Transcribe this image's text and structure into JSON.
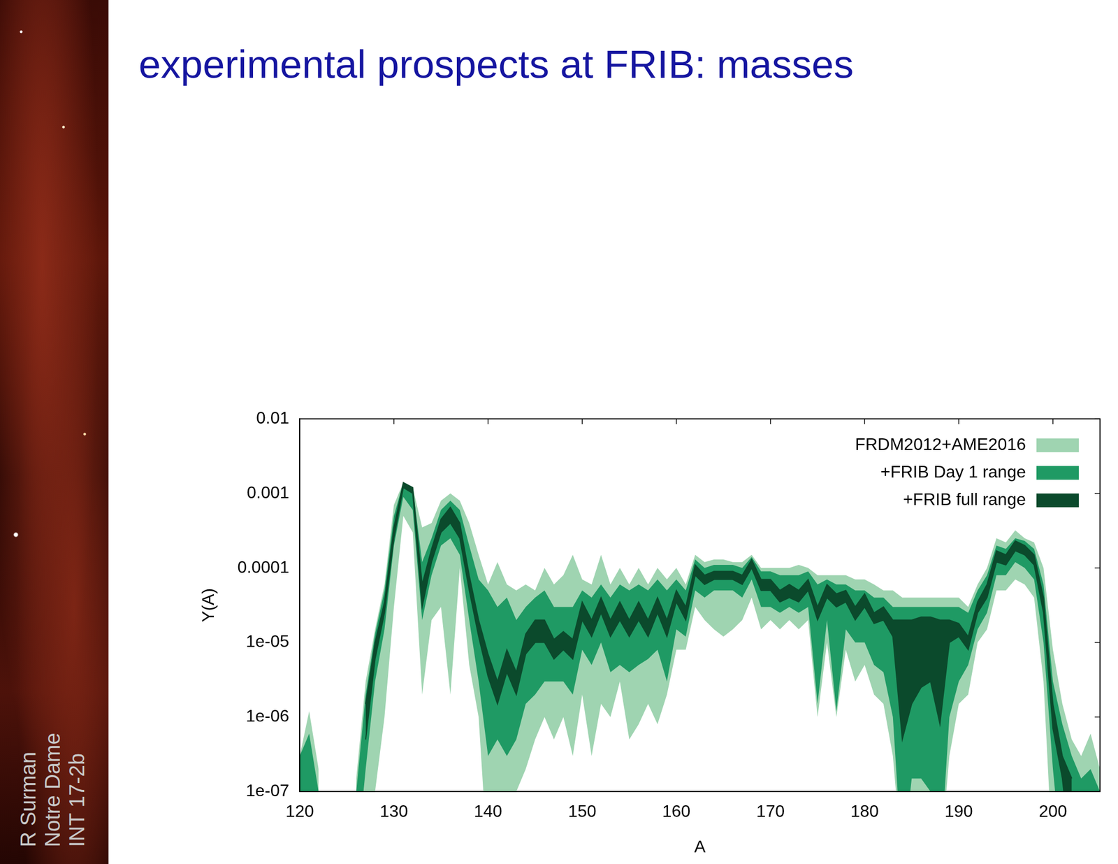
{
  "chart_data": {
    "type": "line",
    "title": "experimental prospects at FRIB: masses",
    "annotations": [
      "R Surman",
      "Notre Dame",
      "INT 17-2b"
    ],
    "xlabel": "A",
    "ylabel": "Y(A)",
    "log": "y",
    "legend": "upper right",
    "grid": false,
    "xlim": [
      120,
      205
    ],
    "xticks": [
      120,
      130,
      140,
      150,
      160,
      170,
      180,
      190,
      200
    ],
    "ylim": [
      1e-07,
      0.01
    ],
    "yticks": [
      {
        "value": 1e-07,
        "label": "1e-07"
      },
      {
        "value": 1e-06,
        "label": "1e-06"
      },
      {
        "value": 1e-05,
        "label": "1e-05"
      },
      0.0001,
      0.001,
      0.01
    ],
    "x": [
      120,
      121,
      122,
      123,
      124,
      125,
      126,
      127,
      128,
      129,
      130,
      131,
      132,
      133,
      134,
      135,
      136,
      137,
      138,
      139,
      140,
      141,
      142,
      143,
      144,
      145,
      146,
      147,
      148,
      149,
      150,
      151,
      152,
      153,
      154,
      155,
      156,
      157,
      158,
      159,
      160,
      161,
      162,
      163,
      164,
      165,
      166,
      167,
      168,
      169,
      170,
      171,
      172,
      173,
      174,
      175,
      176,
      177,
      178,
      179,
      180,
      181,
      182,
      183,
      184,
      185,
      186,
      187,
      188,
      189,
      190,
      191,
      192,
      193,
      194,
      195,
      196,
      197,
      198,
      199,
      200,
      201,
      202,
      203,
      204,
      205
    ],
    "series": [
      {
        "name": "FRDM2012+AME2016",
        "color": "#9fd4b1",
        "lower": [
          1e-08,
          1e-08,
          1e-08,
          null,
          null,
          null,
          1e-08,
          1e-08,
          1e-07,
          1e-06,
          3e-05,
          0.0005,
          0.0003,
          2e-06,
          2e-05,
          3e-05,
          2e-06,
          0.0001,
          5e-06,
          1e-06,
          1e-08,
          1e-08,
          1e-07,
          1e-07,
          2e-07,
          5e-07,
          1e-06,
          5e-07,
          1e-06,
          3e-07,
          2e-06,
          3e-07,
          1.5e-06,
          1e-06,
          3e-06,
          5e-07,
          8e-07,
          1.5e-06,
          8e-07,
          2e-06,
          8e-06,
          8e-06,
          3e-05,
          2e-05,
          1.5e-05,
          1.2e-05,
          1.5e-05,
          2e-05,
          4e-05,
          1.5e-05,
          2e-05,
          1.5e-05,
          2e-05,
          1.5e-05,
          2e-05,
          1e-06,
          1e-05,
          1e-06,
          8e-06,
          3e-06,
          5e-06,
          2e-06,
          1.5e-06,
          3e-07,
          1e-08,
          1e-08,
          1e-08,
          1e-08,
          1e-08,
          3e-07,
          1.5e-06,
          2e-06,
          1e-05,
          1.5e-05,
          5e-05,
          5e-05,
          7e-05,
          6e-05,
          4e-05,
          3e-06,
          1e-08,
          1e-08,
          1e-08,
          1e-08,
          1e-08,
          1e-08
        ],
        "upper": [
          3e-07,
          1.2e-06,
          2e-07,
          null,
          null,
          null,
          1.5e-07,
          3e-06,
          1.5e-05,
          6e-05,
          0.0007,
          0.0014,
          0.0012,
          0.00035,
          0.0004,
          0.0008,
          0.001,
          0.0008,
          0.0004,
          0.00015,
          6e-05,
          0.00012,
          6e-05,
          5e-05,
          6e-05,
          5e-05,
          0.0001,
          6e-05,
          8e-05,
          0.00015,
          7e-05,
          6e-05,
          0.00015,
          6e-05,
          0.0001,
          6e-05,
          0.0001,
          6e-05,
          0.0001,
          7e-05,
          0.0001,
          6e-05,
          0.00015,
          0.00012,
          0.00013,
          0.00013,
          0.00012,
          0.00012,
          0.00015,
          0.0001,
          0.0001,
          0.0001,
          0.0001,
          0.00011,
          0.0001,
          8e-05,
          8e-05,
          8e-05,
          8e-05,
          7e-05,
          7e-05,
          6e-05,
          5e-05,
          5e-05,
          4e-05,
          4e-05,
          4e-05,
          4e-05,
          4e-05,
          4e-05,
          4e-05,
          3e-05,
          6e-05,
          0.0001,
          0.00025,
          0.00022,
          0.00032,
          0.00025,
          0.00022,
          0.0001,
          8e-06,
          1.5e-06,
          5e-07,
          3e-07,
          6e-07,
          2e-07
        ]
      },
      {
        "name": "+FRIB Day 1 range",
        "color": "#1f9a64",
        "lower": [
          1e-08,
          1e-08,
          1e-08,
          null,
          null,
          null,
          1e-08,
          2e-07,
          3e-06,
          1.5e-05,
          0.0002,
          0.0009,
          0.0006,
          2e-05,
          8e-05,
          0.0002,
          0.00025,
          0.00015,
          2e-05,
          3e-06,
          3e-07,
          5e-07,
          3e-07,
          5e-07,
          1.5e-06,
          2e-06,
          3e-06,
          3e-06,
          3e-06,
          2e-06,
          8e-06,
          5e-06,
          1e-05,
          4e-06,
          5e-06,
          4e-06,
          5e-06,
          6e-06,
          8e-06,
          3e-06,
          1.5e-05,
          1.2e-05,
          5e-05,
          4e-05,
          5e-05,
          5e-05,
          5e-05,
          4e-05,
          7e-05,
          3e-05,
          3e-05,
          2.5e-05,
          3e-05,
          2.5e-05,
          3e-05,
          1.5e-06,
          2e-05,
          1.2e-06,
          1.5e-05,
          1e-05,
          1e-05,
          5e-06,
          4e-06,
          1e-06,
          1e-08,
          1.5e-07,
          1.5e-07,
          1e-07,
          1e-08,
          1e-06,
          3e-06,
          5e-06,
          1.5e-05,
          2.5e-05,
          8e-05,
          8e-05,
          0.00012,
          0.0001,
          7e-05,
          1e-05,
          2e-07,
          1e-08,
          1e-08,
          1e-08,
          1e-08,
          1e-08
        ],
        "upper": [
          3e-07,
          6e-07,
          1e-07,
          null,
          null,
          null,
          1e-07,
          2e-06,
          1.3e-05,
          5e-05,
          0.0005,
          0.0014,
          0.0012,
          0.00012,
          0.00025,
          0.0006,
          0.0008,
          0.0006,
          0.0002,
          7e-05,
          5e-05,
          3e-05,
          4e-05,
          2e-05,
          3e-05,
          4e-05,
          5e-05,
          3e-05,
          3e-05,
          3e-05,
          5e-05,
          4e-05,
          6e-05,
          4e-05,
          6e-05,
          5e-05,
          6e-05,
          5e-05,
          7e-05,
          5e-05,
          7e-05,
          5e-05,
          0.00013,
          0.0001,
          0.00011,
          0.00011,
          0.00011,
          0.0001,
          0.00014,
          9e-05,
          9e-05,
          8e-05,
          8e-05,
          8e-05,
          9e-05,
          6e-05,
          7e-05,
          6e-05,
          6e-05,
          5e-05,
          5e-05,
          4e-05,
          4e-05,
          3e-05,
          3e-05,
          3e-05,
          3e-05,
          3e-05,
          3e-05,
          3e-05,
          3e-05,
          2.5e-05,
          5e-05,
          8e-05,
          0.0002,
          0.00018,
          0.00025,
          0.00023,
          0.00018,
          6e-05,
          3e-06,
          8e-07,
          3e-07,
          1.5e-07,
          2e-07,
          1e-07
        ]
      },
      {
        "name": "+FRIB full range",
        "color": "#0b4a2c",
        "lower": [
          null,
          null,
          null,
          null,
          null,
          null,
          null,
          5e-07,
          6e-06,
          2.5e-05,
          0.00025,
          0.0012,
          0.001,
          3e-05,
          0.00012,
          0.0003,
          0.0004,
          0.00025,
          5e-05,
          1.2e-05,
          3.5e-06,
          1.5e-06,
          4e-06,
          2e-06,
          7e-06,
          1e-05,
          1e-05,
          6e-06,
          8e-06,
          6e-06,
          2e-05,
          1.2e-05,
          2.5e-05,
          1.2e-05,
          2e-05,
          1.2e-05,
          2e-05,
          1.2e-05,
          2.5e-05,
          1.2e-05,
          3.5e-05,
          2e-05,
          8e-05,
          6e-05,
          7e-05,
          7e-05,
          7e-05,
          6e-05,
          0.0001,
          5e-05,
          5e-05,
          3.5e-05,
          4e-05,
          3.5e-05,
          5e-05,
          2e-05,
          4e-05,
          3e-05,
          3.5e-05,
          2e-05,
          3e-05,
          1.8e-05,
          2e-05,
          1.2e-05,
          5e-07,
          1.5e-06,
          2.5e-06,
          3e-06,
          8e-07,
          1e-05,
          1.2e-05,
          8e-06,
          2.5e-05,
          4e-05,
          0.00012,
          0.00011,
          0.00017,
          0.00015,
          0.00011,
          2.5e-05,
          7e-07,
          1.5e-07,
          1e-08,
          null,
          null,
          null
        ],
        "upper": [
          null,
          null,
          null,
          null,
          null,
          null,
          null,
          1.5e-06,
          1e-05,
          3.5e-05,
          0.00035,
          0.0014,
          0.0012,
          6e-05,
          0.00018,
          0.00045,
          0.00065,
          0.0004,
          8e-05,
          2e-05,
          7e-06,
          3e-06,
          8e-06,
          4e-06,
          1.3e-05,
          2e-05,
          2e-05,
          1.1e-05,
          1.4e-05,
          1.1e-05,
          3.5e-05,
          2e-05,
          4e-05,
          2e-05,
          3.5e-05,
          2e-05,
          3.5e-05,
          2e-05,
          4e-05,
          2e-05,
          5e-05,
          3e-05,
          0.00011,
          8e-05,
          9e-05,
          9e-05,
          9e-05,
          8e-05,
          0.00013,
          7e-05,
          7e-05,
          5e-05,
          6e-05,
          5e-05,
          7e-05,
          3e-05,
          6e-05,
          4.5e-05,
          5e-05,
          3e-05,
          4.5e-05,
          2.5e-05,
          3e-05,
          2e-05,
          2e-05,
          2e-05,
          2.2e-05,
          2.2e-05,
          2e-05,
          2e-05,
          1.8e-05,
          1.2e-05,
          3.5e-05,
          6e-05,
          0.00017,
          0.00015,
          0.00023,
          0.0002,
          0.00015,
          4e-05,
          1.5e-06,
          3e-07,
          1.5e-07,
          null,
          null,
          null
        ]
      }
    ]
  }
}
